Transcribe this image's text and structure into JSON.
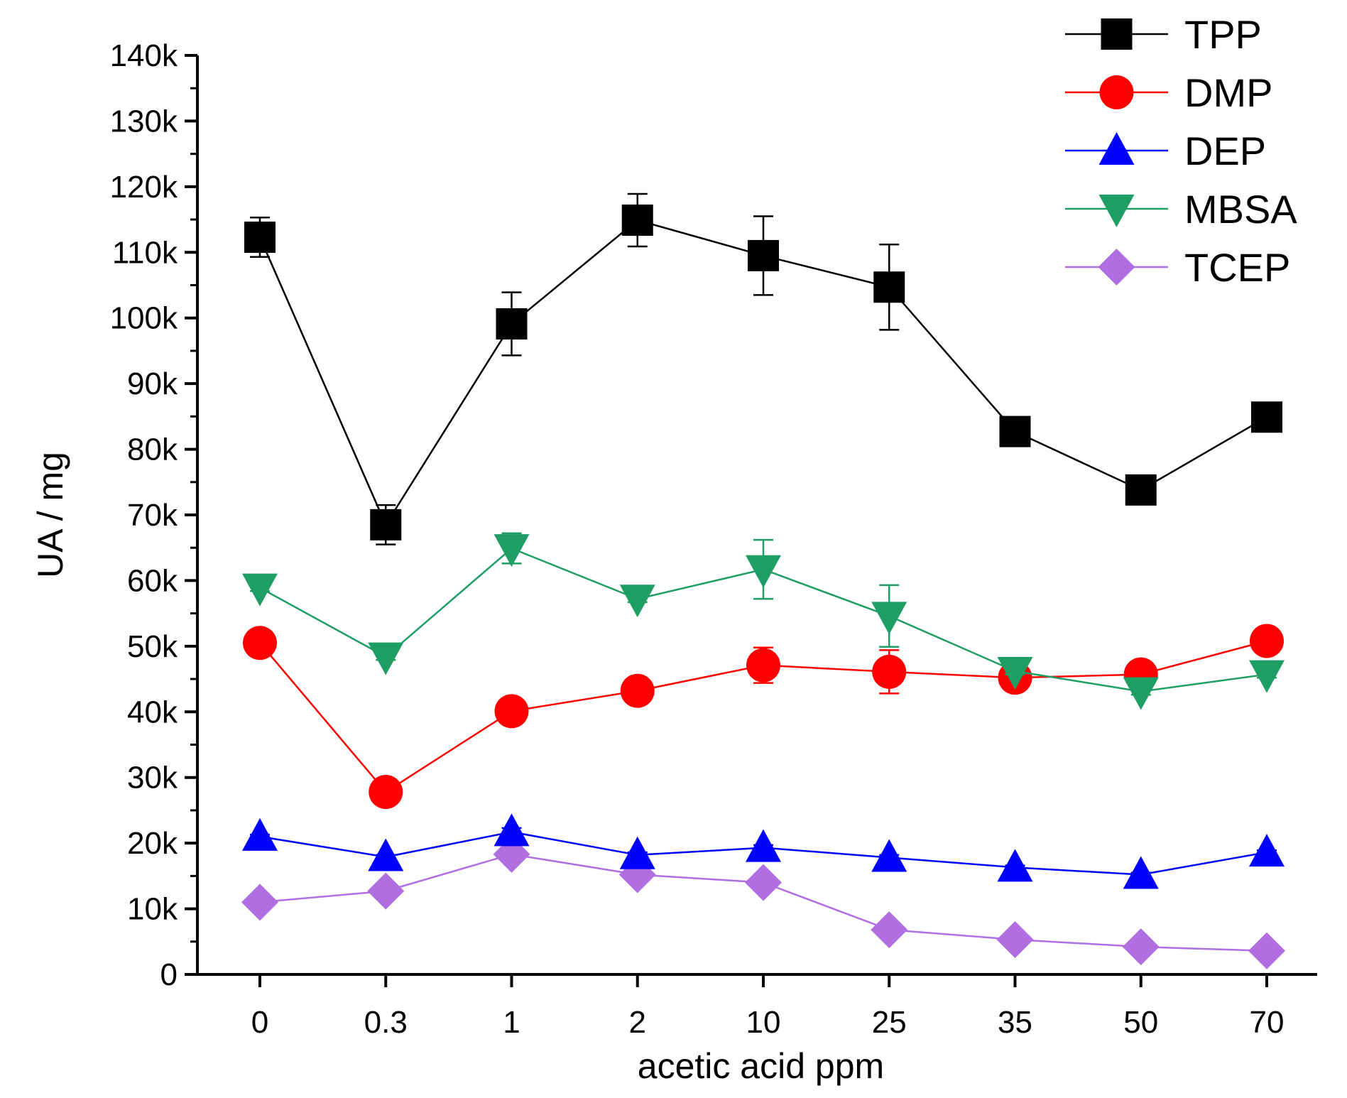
{
  "chart_data": {
    "type": "line",
    "title": "",
    "xlabel": "acetic acid ppm",
    "ylabel": "UA / mg",
    "categories": [
      "0",
      "0.3",
      "1",
      "2",
      "10",
      "25",
      "35",
      "50",
      "70"
    ],
    "ylim": [
      0,
      140000
    ],
    "yticks": [
      0,
      10000,
      20000,
      30000,
      40000,
      50000,
      60000,
      70000,
      80000,
      90000,
      100000,
      110000,
      120000,
      130000,
      140000
    ],
    "ytick_labels": [
      "0",
      "10k",
      "20k",
      "30k",
      "40k",
      "50k",
      "60k",
      "70k",
      "80k",
      "90k",
      "100k",
      "110k",
      "120k",
      "130k",
      "140k"
    ],
    "grid": false,
    "legend_position": "top-right",
    "series": [
      {
        "name": "TPP",
        "color": "#000000",
        "marker": "square",
        "values": [
          112300,
          68500,
          99100,
          114900,
          109500,
          104700,
          82700,
          73800,
          84900
        ],
        "errors": [
          3000,
          3000,
          4800,
          4000,
          6000,
          6500,
          500,
          500,
          1000
        ]
      },
      {
        "name": "DMP",
        "color": "#ff0000",
        "marker": "circle",
        "values": [
          50500,
          27800,
          40100,
          43200,
          47100,
          46100,
          45200,
          45700,
          50800
        ],
        "errors": [
          500,
          500,
          500,
          500,
          2700,
          3300,
          500,
          500,
          500
        ]
      },
      {
        "name": "DEP",
        "color": "#0000ff",
        "marker": "triangle-up",
        "values": [
          21000,
          17900,
          21700,
          18200,
          19300,
          17800,
          16300,
          15200,
          18600
        ],
        "errors": [
          300,
          300,
          600,
          400,
          400,
          400,
          300,
          300,
          300
        ]
      },
      {
        "name": "MBSA",
        "color": "#1e9e64",
        "marker": "triangle-down",
        "values": [
          58900,
          48400,
          64900,
          57200,
          61700,
          54600,
          46200,
          43100,
          45700
        ],
        "errors": [
          500,
          500,
          2300,
          500,
          4500,
          4700,
          500,
          500,
          500
        ]
      },
      {
        "name": "TCEP",
        "color": "#b06ee0",
        "marker": "diamond",
        "values": [
          11000,
          12700,
          18300,
          15200,
          14000,
          6800,
          5300,
          4200,
          3600
        ],
        "errors": [
          0,
          0,
          0,
          0,
          0,
          0,
          0,
          0,
          0
        ]
      }
    ]
  }
}
